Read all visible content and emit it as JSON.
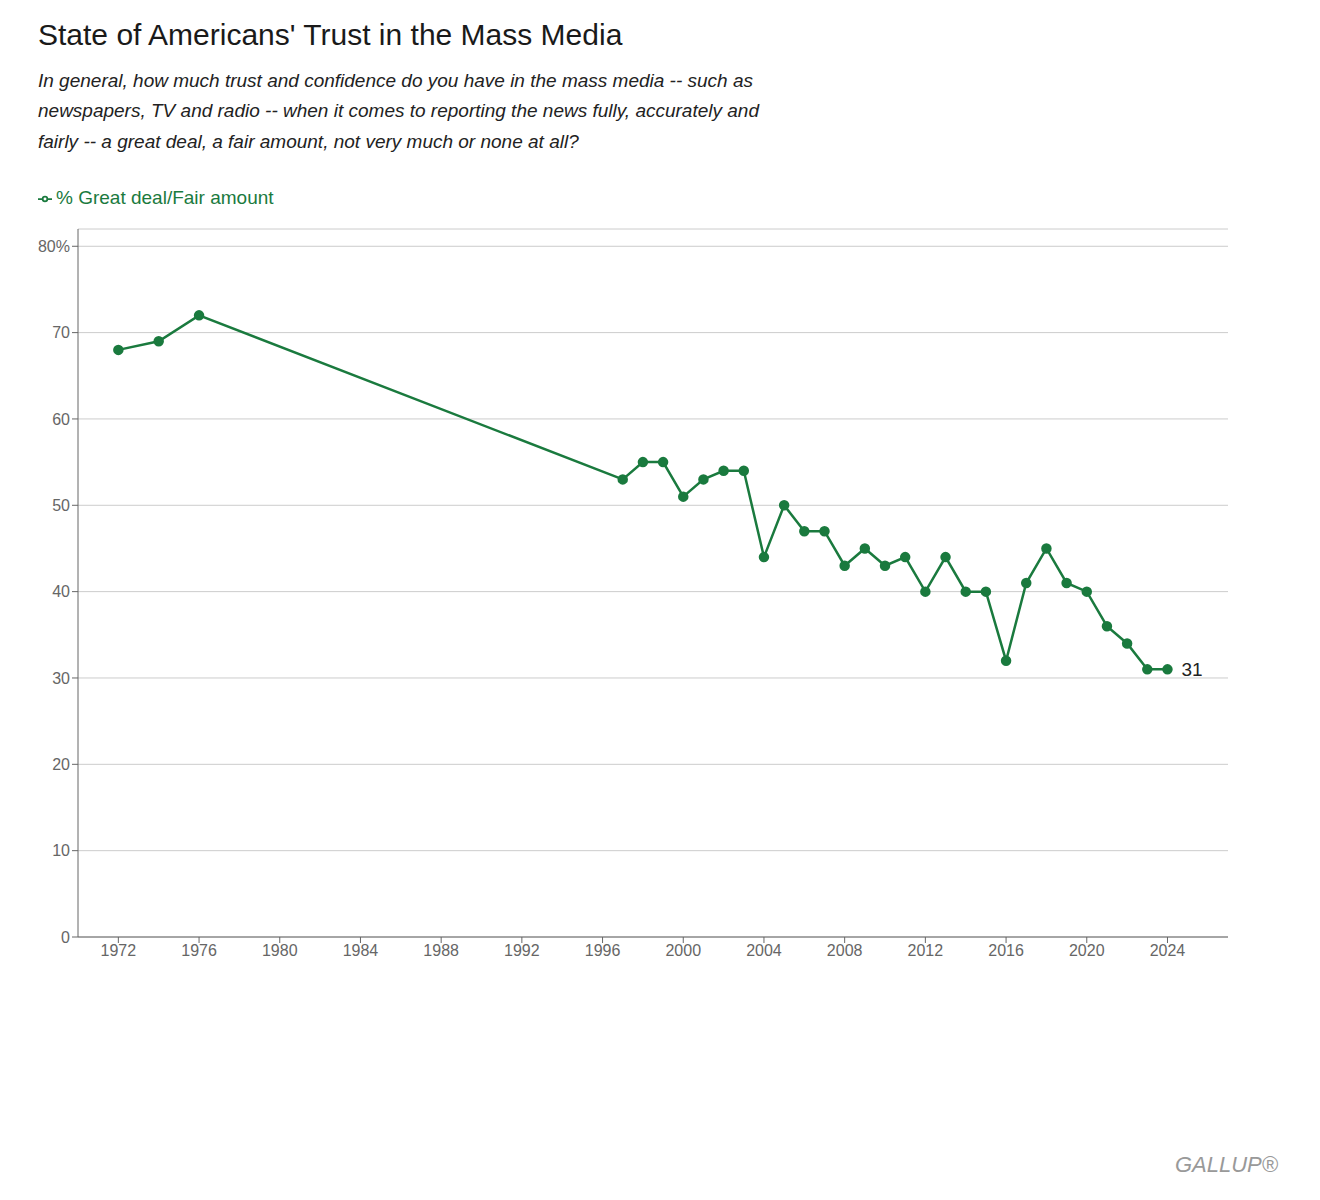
{
  "chart_data": {
    "type": "line",
    "title": "State of Americans' Trust in the Mass Media",
    "subtitle": "In general, how much trust and confidence do you have in the mass media -- such as\nnewspapers, TV and radio -- when it comes to reporting the news fully, accurately and\nfairly -- a great deal, a fair amount, not very much or none at all?",
    "credit": "GALLUP®",
    "x": [
      1972,
      1974,
      1976,
      1997,
      1998,
      1999,
      2000,
      2001,
      2002,
      2003,
      2004,
      2005,
      2006,
      2007,
      2008,
      2009,
      2010,
      2011,
      2012,
      2013,
      2014,
      2015,
      2016,
      2017,
      2018,
      2019,
      2020,
      2021,
      2022,
      2023,
      2024
    ],
    "series": [
      {
        "name": "% Great deal/Fair amount",
        "color": "#1a7a3e",
        "marker": "circle",
        "values": [
          68,
          69,
          72,
          53,
          55,
          55,
          51,
          53,
          54,
          54,
          44,
          50,
          47,
          47,
          43,
          45,
          43,
          44,
          40,
          44,
          40,
          40,
          32,
          41,
          45,
          41,
          40,
          36,
          34,
          31,
          31
        ]
      }
    ],
    "annotations": [
      {
        "text": "31",
        "x": 2024,
        "y": 31
      }
    ],
    "xlim": [
      1970,
      2027
    ],
    "xticks": [
      1972,
      1976,
      1980,
      1984,
      1988,
      1992,
      1996,
      2000,
      2004,
      2008,
      2012,
      2016,
      2020,
      2024
    ],
    "ylim": [
      0,
      82
    ],
    "yticks": [
      0,
      10,
      20,
      30,
      40,
      50,
      60,
      70,
      {
        "value": 80,
        "label": "80%"
      }
    ],
    "grid": true,
    "legend": "top"
  }
}
